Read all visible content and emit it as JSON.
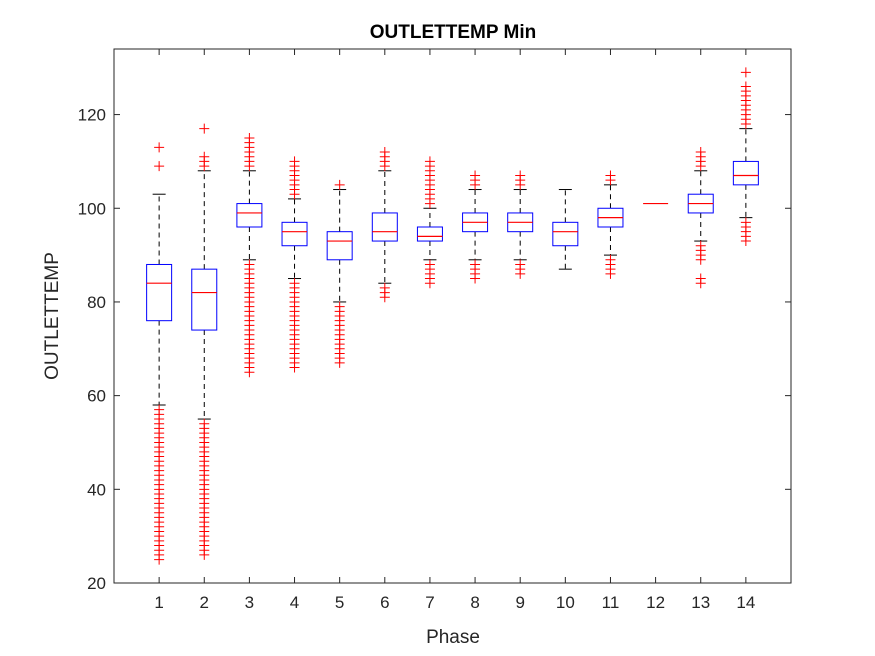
{
  "chart_data": {
    "type": "boxplot",
    "title": "OUTLETTEMP Min",
    "xlabel": "Phase",
    "ylabel": "OUTLETTEMP",
    "ylim": [
      20,
      134
    ],
    "yticks": [
      20,
      40,
      60,
      80,
      100,
      120
    ],
    "grid": false,
    "colors": {
      "box": "#0000ff",
      "median": "#ff0000",
      "whisker": "#000000",
      "outlier": "#ff0000"
    },
    "categories": [
      "1",
      "2",
      "3",
      "4",
      "5",
      "6",
      "7",
      "8",
      "9",
      "10",
      "11",
      "12",
      "13",
      "14"
    ],
    "boxes": [
      {
        "phase": "1",
        "q1": 76,
        "median": 84,
        "q3": 88,
        "whisker_low": 58,
        "whisker_high": 103,
        "outliers": [
          109,
          113,
          57,
          56,
          55,
          54,
          53,
          52,
          51,
          50,
          49,
          48,
          47,
          46,
          45,
          44,
          43,
          42,
          41,
          40,
          39,
          38,
          37,
          36,
          35,
          34,
          33,
          32,
          31,
          30,
          29,
          28,
          27,
          26,
          25
        ]
      },
      {
        "phase": "2",
        "q1": 74,
        "median": 82,
        "q3": 87,
        "whisker_low": 55,
        "whisker_high": 108,
        "outliers": [
          109,
          110,
          111,
          117,
          54,
          53,
          52,
          51,
          50,
          49,
          48,
          47,
          46,
          45,
          44,
          43,
          42,
          41,
          40,
          39,
          38,
          37,
          36,
          35,
          34,
          33,
          32,
          31,
          30,
          29,
          28,
          27,
          26
        ]
      },
      {
        "phase": "3",
        "q1": 96,
        "median": 99,
        "q3": 101,
        "whisker_low": 89,
        "whisker_high": 108,
        "outliers": [
          109,
          110,
          111,
          112,
          113,
          114,
          115,
          88,
          87,
          86,
          85,
          84,
          83,
          82,
          81,
          80,
          79,
          78,
          77,
          76,
          75,
          74,
          73,
          72,
          71,
          70,
          69,
          68,
          67,
          66,
          65
        ]
      },
      {
        "phase": "4",
        "q1": 92,
        "median": 95,
        "q3": 97,
        "whisker_low": 85,
        "whisker_high": 102,
        "outliers": [
          103,
          104,
          105,
          106,
          107,
          108,
          109,
          110,
          84,
          83,
          82,
          81,
          80,
          79,
          78,
          77,
          76,
          75,
          74,
          73,
          72,
          71,
          70,
          69,
          68,
          67,
          66
        ]
      },
      {
        "phase": "5",
        "q1": 89,
        "median": 93,
        "q3": 95,
        "whisker_low": 80,
        "whisker_high": 104,
        "outliers": [
          105,
          79,
          78,
          77,
          76,
          75,
          74,
          73,
          72,
          71,
          70,
          69,
          68,
          67
        ]
      },
      {
        "phase": "6",
        "q1": 93,
        "median": 95,
        "q3": 99,
        "whisker_low": 84,
        "whisker_high": 108,
        "outliers": [
          109,
          110,
          111,
          112,
          83,
          82,
          81
        ]
      },
      {
        "phase": "7",
        "q1": 93,
        "median": 94,
        "q3": 96,
        "whisker_low": 89,
        "whisker_high": 100,
        "outliers": [
          101,
          102,
          103,
          104,
          105,
          106,
          107,
          108,
          109,
          110,
          88,
          87,
          86,
          85,
          84
        ]
      },
      {
        "phase": "8",
        "q1": 95,
        "median": 97,
        "q3": 99,
        "whisker_low": 89,
        "whisker_high": 104,
        "outliers": [
          105,
          106,
          107,
          88,
          87,
          86,
          85
        ]
      },
      {
        "phase": "9",
        "q1": 95,
        "median": 97,
        "q3": 99,
        "whisker_low": 89,
        "whisker_high": 104,
        "outliers": [
          105,
          106,
          107,
          88,
          87,
          86
        ]
      },
      {
        "phase": "10",
        "q1": 92,
        "median": 95,
        "q3": 97,
        "whisker_low": 87,
        "whisker_high": 104,
        "outliers": []
      },
      {
        "phase": "11",
        "q1": 96,
        "median": 98,
        "q3": 100,
        "whisker_low": 90,
        "whisker_high": 105,
        "outliers": [
          106,
          107,
          89,
          88,
          87,
          86
        ]
      },
      {
        "phase": "12",
        "q1": 101,
        "median": 101,
        "q3": 101,
        "whisker_low": 101,
        "whisker_high": 101,
        "outliers": []
      },
      {
        "phase": "13",
        "q1": 99,
        "median": 101,
        "q3": 103,
        "whisker_low": 93,
        "whisker_high": 108,
        "outliers": [
          109,
          110,
          111,
          112,
          92,
          91,
          90,
          89,
          85,
          84
        ]
      },
      {
        "phase": "14",
        "q1": 105,
        "median": 107,
        "q3": 110,
        "whisker_low": 98,
        "whisker_high": 117,
        "outliers": [
          118,
          119,
          120,
          121,
          122,
          123,
          124,
          125,
          126,
          129,
          97,
          96,
          95,
          94,
          93
        ]
      }
    ]
  }
}
